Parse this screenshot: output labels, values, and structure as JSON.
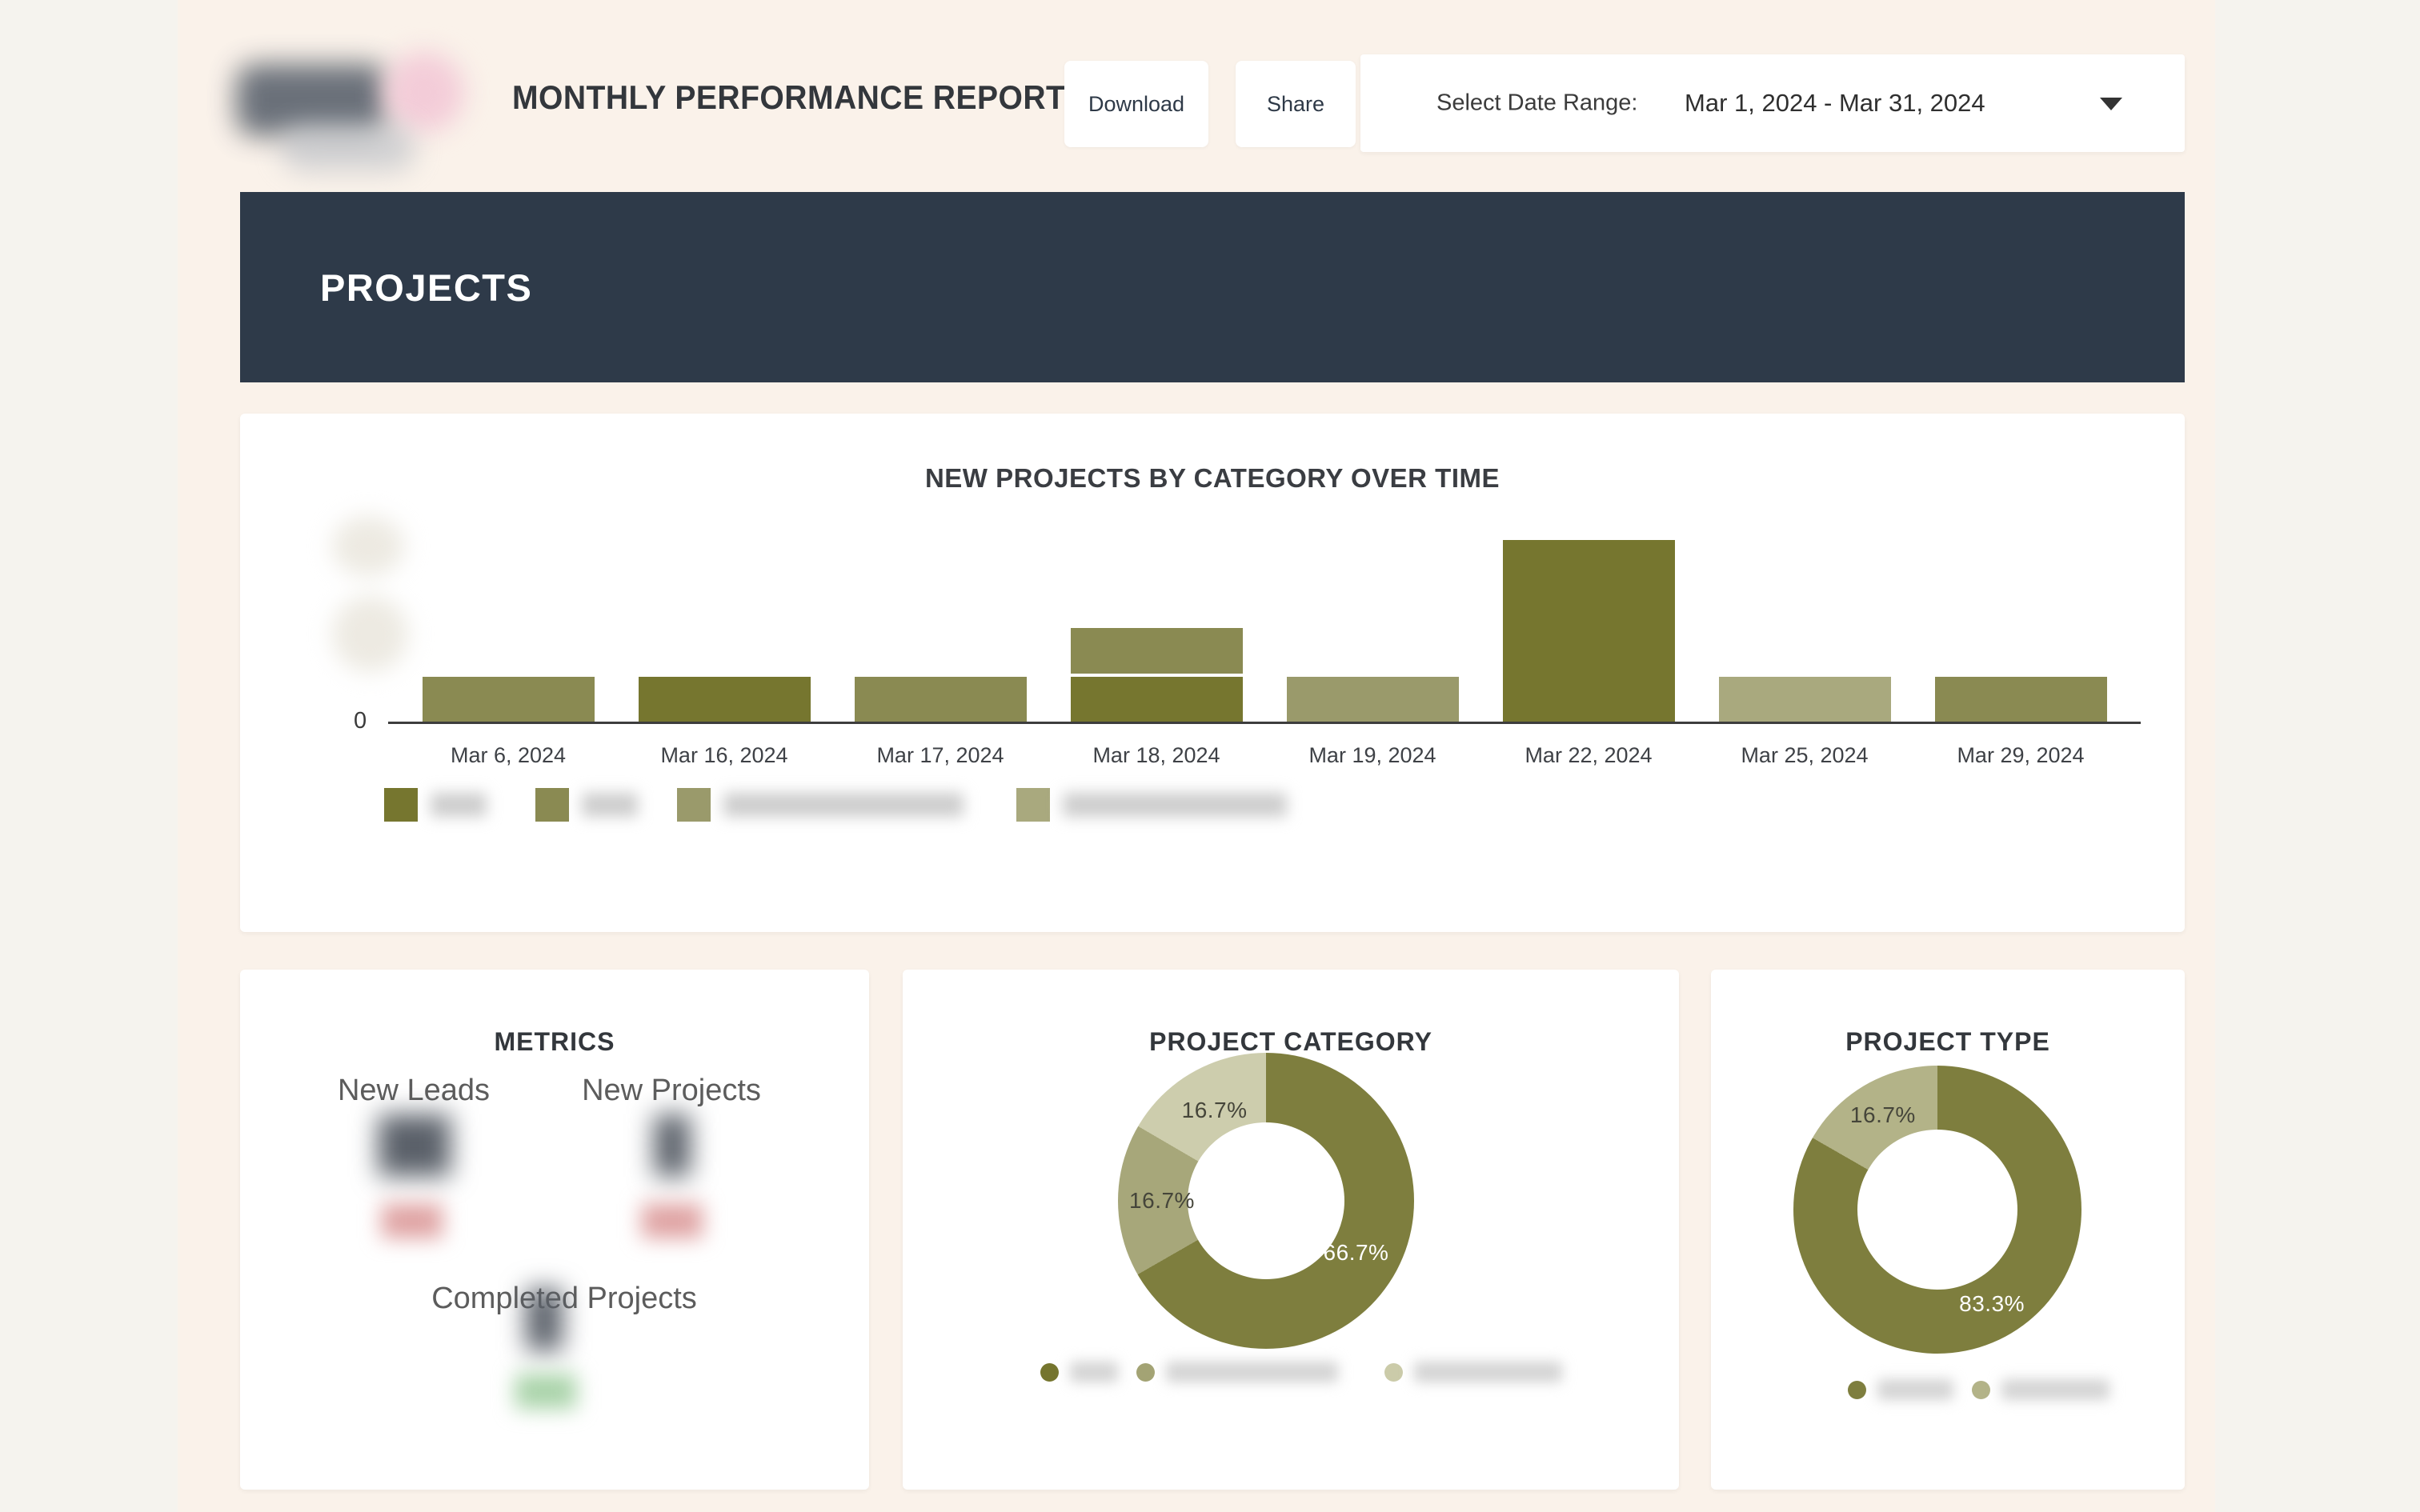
{
  "header": {
    "logo_redacted": true,
    "title": "MONTHLY PERFORMANCE REPORT",
    "download_label": "Download",
    "share_label": "Share",
    "date_label": "Select Date Range:",
    "date_value": "Mar 1, 2024 - Mar 31, 2024"
  },
  "banner": {
    "title": "PROJECTS"
  },
  "metrics": {
    "title": "METRICS",
    "items": [
      {
        "label": "New Leads",
        "value_redacted": "██",
        "delta_redacted": "███",
        "delta_color": "#dfa3a3"
      },
      {
        "label": "New Projects",
        "value_redacted": "█",
        "delta_redacted": "███",
        "delta_color": "#dfa3a3"
      },
      {
        "label": "Completed Projects",
        "value_redacted": "█",
        "delta_redacted": "███",
        "delta_color": "#a9d3a9"
      }
    ]
  },
  "chart_data": [
    {
      "type": "bar",
      "stacked": true,
      "title": "NEW PROJECTS BY CATEGORY OVER TIME",
      "categories": [
        "Mar 6, 2024",
        "Mar 16, 2024",
        "Mar 17, 2024",
        "Mar 18, 2024",
        "Mar 19, 2024",
        "Mar 22, 2024",
        "Mar 25, 2024",
        "Mar 29, 2024"
      ],
      "series": [
        {
          "label_redacted": true,
          "color": "#76762f",
          "values": [
            0,
            1,
            0,
            1,
            0,
            4,
            0,
            0
          ]
        },
        {
          "label_redacted": true,
          "color": "#8a8a52",
          "values": [
            1,
            0,
            1,
            1,
            0,
            0,
            0,
            1
          ]
        },
        {
          "label_redacted": true,
          "color": "#9a9a6b",
          "values": [
            0,
            0,
            0,
            0,
            1,
            0,
            0,
            0
          ]
        },
        {
          "label_redacted": true,
          "color": "#a9a97e",
          "values": [
            0,
            0,
            0,
            0,
            0,
            0,
            1,
            0
          ]
        }
      ],
      "xlabel": "",
      "ylabel": "",
      "y_tick_visible": "0",
      "y_ticks_blurred_estimated": [
        2,
        4
      ],
      "ylim": [
        0,
        4.6
      ],
      "grid": false,
      "legend_position": "bottom",
      "legend_labels_redacted": true
    },
    {
      "type": "donut",
      "title": "PROJECT CATEGORY",
      "slices": [
        {
          "label": "66.7%",
          "pct": 66.7,
          "color": "#7e7e3e",
          "text_color": "#ffffff"
        },
        {
          "label": "16.7%",
          "pct": 16.7,
          "color": "#a7a77a",
          "text_color": "#45453a"
        },
        {
          "label": "16.7%",
          "pct": 16.7,
          "color": "#cdcdad",
          "text_color": "#45453a"
        }
      ],
      "legend": [
        {
          "color": "#75752e",
          "label_redacted": true
        },
        {
          "color": "#a3a374",
          "label_redacted": true
        },
        {
          "color": "#cbcba9",
          "label_redacted": true
        }
      ],
      "legend_position": "bottom"
    },
    {
      "type": "donut",
      "title": "PROJECT TYPE",
      "slices": [
        {
          "label": "83.3%",
          "pct": 83.3,
          "color": "#7e7e3e",
          "text_color": "#ffffff"
        },
        {
          "label": "16.7%",
          "pct": 16.7,
          "color": "#b3b388",
          "text_color": "#45453a"
        }
      ],
      "legend": [
        {
          "color": "#7e7e3e",
          "label_redacted": true
        },
        {
          "color": "#b3b388",
          "label_redacted": true
        }
      ],
      "legend_position": "bottom"
    }
  ]
}
